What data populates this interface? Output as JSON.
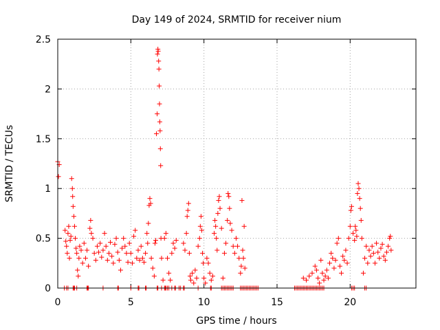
{
  "chart_data": {
    "type": "scatter",
    "title": "Day 149 of 2024, SRMTID for receiver nium",
    "xlabel": "GPS time / hours",
    "ylabel": "SRMTID / TECUs",
    "xlim": [
      0,
      24.5
    ],
    "ylim": [
      0,
      2.5
    ],
    "xticks": [
      0,
      5,
      10,
      15,
      20
    ],
    "xtick_labels": [
      "0",
      "5",
      "10",
      "15",
      "20"
    ],
    "yticks": [
      0,
      0.5,
      1,
      1.5,
      2,
      2.5
    ],
    "ytick_labels": [
      "0",
      "0.5",
      "1",
      "1.5",
      "2",
      "2.5"
    ],
    "grid": true,
    "marker": "+",
    "color": "#ff0000",
    "series": [
      {
        "name": "SRMTID",
        "points": [
          [
            0.0,
            1.27
          ],
          [
            0.05,
            1.12
          ],
          [
            0.1,
            1.24
          ],
          [
            0.5,
            0.58
          ],
          [
            0.55,
            0.47
          ],
          [
            0.6,
            0.42
          ],
          [
            0.65,
            0.35
          ],
          [
            0.7,
            0.55
          ],
          [
            0.75,
            0.62
          ],
          [
            0.8,
            0.3
          ],
          [
            0.85,
            0.48
          ],
          [
            0.9,
            0.52
          ],
          [
            0.95,
            1.1
          ],
          [
            1.0,
            1.0
          ],
          [
            1.02,
            0.92
          ],
          [
            1.05,
            0.82
          ],
          [
            1.1,
            0.72
          ],
          [
            1.15,
            0.62
          ],
          [
            1.2,
            0.5
          ],
          [
            1.25,
            0.4
          ],
          [
            1.3,
            0.35
          ],
          [
            1.35,
            0.18
          ],
          [
            1.4,
            0.12
          ],
          [
            1.45,
            0.3
          ],
          [
            1.5,
            0.42
          ],
          [
            1.6,
            0.38
          ],
          [
            1.7,
            0.25
          ],
          [
            1.8,
            0.45
          ],
          [
            1.9,
            0.3
          ],
          [
            2.0,
            0.38
          ],
          [
            2.1,
            0.22
          ],
          [
            2.2,
            0.6
          ],
          [
            2.25,
            0.68
          ],
          [
            2.3,
            0.55
          ],
          [
            2.4,
            0.5
          ],
          [
            2.5,
            0.35
          ],
          [
            2.6,
            0.28
          ],
          [
            2.7,
            0.42
          ],
          [
            2.8,
            0.36
          ],
          [
            2.9,
            0.45
          ],
          [
            3.0,
            0.31
          ],
          [
            3.1,
            0.38
          ],
          [
            3.2,
            0.55
          ],
          [
            3.3,
            0.42
          ],
          [
            3.4,
            0.28
          ],
          [
            3.5,
            0.35
          ],
          [
            3.6,
            0.46
          ],
          [
            3.7,
            0.32
          ],
          [
            3.8,
            0.25
          ],
          [
            3.9,
            0.44
          ],
          [
            4.0,
            0.5
          ],
          [
            4.1,
            0.36
          ],
          [
            4.2,
            0.28
          ],
          [
            4.3,
            0.18
          ],
          [
            4.4,
            0.4
          ],
          [
            4.5,
            0.5
          ],
          [
            4.6,
            0.42
          ],
          [
            4.7,
            0.35
          ],
          [
            4.8,
            0.26
          ],
          [
            4.9,
            0.45
          ],
          [
            5.0,
            0.35
          ],
          [
            5.1,
            0.25
          ],
          [
            5.2,
            0.52
          ],
          [
            5.3,
            0.58
          ],
          [
            5.4,
            0.3
          ],
          [
            5.5,
            0.38
          ],
          [
            5.6,
            0.28
          ],
          [
            5.7,
            0.42
          ],
          [
            5.8,
            0.3
          ],
          [
            5.9,
            0.26
          ],
          [
            6.0,
            0.35
          ],
          [
            6.1,
            0.55
          ],
          [
            6.15,
            0.45
          ],
          [
            6.2,
            0.65
          ],
          [
            6.25,
            0.83
          ],
          [
            6.3,
            0.9
          ],
          [
            6.35,
            0.85
          ],
          [
            6.4,
            0.3
          ],
          [
            6.5,
            0.2
          ],
          [
            6.6,
            0.12
          ],
          [
            6.65,
            0.45
          ],
          [
            6.7,
            0.48
          ],
          [
            6.75,
            1.55
          ],
          [
            6.8,
            1.75
          ],
          [
            6.82,
            2.35
          ],
          [
            6.85,
            2.4
          ],
          [
            6.87,
            2.38
          ],
          [
            6.9,
            2.28
          ],
          [
            6.92,
            2.2
          ],
          [
            6.94,
            2.03
          ],
          [
            6.96,
            1.85
          ],
          [
            6.98,
            1.67
          ],
          [
            7.0,
            1.58
          ],
          [
            7.02,
            1.4
          ],
          [
            7.04,
            1.23
          ],
          [
            7.06,
            0.5
          ],
          [
            7.1,
            0.3
          ],
          [
            7.2,
            0.08
          ],
          [
            7.3,
            0.5
          ],
          [
            7.4,
            0.55
          ],
          [
            7.5,
            0.3
          ],
          [
            7.6,
            0.15
          ],
          [
            7.7,
            0.08
          ],
          [
            7.8,
            0.35
          ],
          [
            7.9,
            0.45
          ],
          [
            8.0,
            0.4
          ],
          [
            8.1,
            0.48
          ],
          [
            8.6,
            0.45
          ],
          [
            8.7,
            0.38
          ],
          [
            8.8,
            0.55
          ],
          [
            8.85,
            0.72
          ],
          [
            8.9,
            0.78
          ],
          [
            8.95,
            0.85
          ],
          [
            9.0,
            0.35
          ],
          [
            9.05,
            0.12
          ],
          [
            9.1,
            0.08
          ],
          [
            9.2,
            0.15
          ],
          [
            9.3,
            0.05
          ],
          [
            9.4,
            0.18
          ],
          [
            9.5,
            0.1
          ],
          [
            9.6,
            0.42
          ],
          [
            9.7,
            0.5
          ],
          [
            9.75,
            0.62
          ],
          [
            9.8,
            0.72
          ],
          [
            9.85,
            0.58
          ],
          [
            9.9,
            0.35
          ],
          [
            9.95,
            0.25
          ],
          [
            10.0,
            0.1
          ],
          [
            10.1,
            0.05
          ],
          [
            10.2,
            0.3
          ],
          [
            10.3,
            0.25
          ],
          [
            10.4,
            0.15
          ],
          [
            10.5,
            0.08
          ],
          [
            10.6,
            0.12
          ],
          [
            10.7,
            0.55
          ],
          [
            10.75,
            0.68
          ],
          [
            10.8,
            0.62
          ],
          [
            10.85,
            0.5
          ],
          [
            10.9,
            0.38
          ],
          [
            10.95,
            0.75
          ],
          [
            11.0,
            0.88
          ],
          [
            11.05,
            0.92
          ],
          [
            11.1,
            0.8
          ],
          [
            11.2,
            0.6
          ],
          [
            11.3,
            0.1
          ],
          [
            11.4,
            0.35
          ],
          [
            11.5,
            0.45
          ],
          [
            11.6,
            0.68
          ],
          [
            11.65,
            0.95
          ],
          [
            11.7,
            0.92
          ],
          [
            11.75,
            0.8
          ],
          [
            11.8,
            0.65
          ],
          [
            11.9,
            0.58
          ],
          [
            12.0,
            0.42
          ],
          [
            12.1,
            0.35
          ],
          [
            12.2,
            0.5
          ],
          [
            12.3,
            0.42
          ],
          [
            12.4,
            0.3
          ],
          [
            12.5,
            0.15
          ],
          [
            12.55,
            0.22
          ],
          [
            12.6,
            0.88
          ],
          [
            12.65,
            0.38
          ],
          [
            12.7,
            0.3
          ],
          [
            12.75,
            0.62
          ],
          [
            12.8,
            0.2
          ],
          [
            16.8,
            0.1
          ],
          [
            17.0,
            0.08
          ],
          [
            17.2,
            0.12
          ],
          [
            17.4,
            0.15
          ],
          [
            17.6,
            0.22
          ],
          [
            17.7,
            0.18
          ],
          [
            17.8,
            0.1
          ],
          [
            17.9,
            0.05
          ],
          [
            18.0,
            0.28
          ],
          [
            18.1,
            0.15
          ],
          [
            18.2,
            0.08
          ],
          [
            18.3,
            0.12
          ],
          [
            18.4,
            0.18
          ],
          [
            18.5,
            0.1
          ],
          [
            18.6,
            0.25
          ],
          [
            18.7,
            0.35
          ],
          [
            18.8,
            0.3
          ],
          [
            18.9,
            0.2
          ],
          [
            19.0,
            0.28
          ],
          [
            19.1,
            0.45
          ],
          [
            19.2,
            0.5
          ],
          [
            19.3,
            0.22
          ],
          [
            19.4,
            0.15
          ],
          [
            19.5,
            0.32
          ],
          [
            19.6,
            0.28
          ],
          [
            19.7,
            0.38
          ],
          [
            19.8,
            0.25
          ],
          [
            19.9,
            0.5
          ],
          [
            20.0,
            0.62
          ],
          [
            20.05,
            0.78
          ],
          [
            20.1,
            0.82
          ],
          [
            20.2,
            0.55
          ],
          [
            20.3,
            0.48
          ],
          [
            20.35,
            0.62
          ],
          [
            20.4,
            0.58
          ],
          [
            20.45,
            0.52
          ],
          [
            20.5,
            0.95
          ],
          [
            20.55,
            1.05
          ],
          [
            20.6,
            1.0
          ],
          [
            20.65,
            0.9
          ],
          [
            20.7,
            0.8
          ],
          [
            20.75,
            0.68
          ],
          [
            20.8,
            0.5
          ],
          [
            20.9,
            0.15
          ],
          [
            21.0,
            0.3
          ],
          [
            21.1,
            0.42
          ],
          [
            21.2,
            0.25
          ],
          [
            21.3,
            0.38
          ],
          [
            21.4,
            0.32
          ],
          [
            21.5,
            0.42
          ],
          [
            21.6,
            0.35
          ],
          [
            21.7,
            0.25
          ],
          [
            21.8,
            0.45
          ],
          [
            21.9,
            0.36
          ],
          [
            22.0,
            0.3
          ],
          [
            22.1,
            0.4
          ],
          [
            22.2,
            0.44
          ],
          [
            22.3,
            0.32
          ],
          [
            22.4,
            0.28
          ],
          [
            22.5,
            0.36
          ],
          [
            22.6,
            0.42
          ],
          [
            22.7,
            0.5
          ],
          [
            22.75,
            0.52
          ],
          [
            22.8,
            0.38
          ]
        ],
        "zero_points": [
          0.45,
          0.6,
          0.7,
          1.05,
          1.1,
          1.15,
          1.3,
          2.0,
          2.05,
          2.1,
          3.1,
          4.1,
          4.15,
          5.0,
          5.5,
          5.55,
          6.0,
          6.05,
          6.8,
          6.85,
          7.1,
          7.3,
          7.35,
          7.4,
          7.5,
          7.6,
          7.8,
          8.0,
          8.05,
          8.3,
          8.4,
          8.6,
          8.65,
          9.6,
          10.45,
          10.5,
          11.2,
          11.3,
          11.4,
          11.5,
          11.6,
          11.7,
          11.8,
          11.9,
          12.0,
          12.5,
          12.6,
          12.7,
          12.8,
          12.9,
          13.0,
          13.1,
          13.2,
          13.3,
          13.4,
          13.5,
          13.6,
          13.7,
          16.2,
          16.3,
          16.4,
          16.5,
          16.6,
          16.7,
          16.8,
          16.9,
          17.0,
          17.1,
          17.2,
          17.3,
          17.4,
          17.5,
          17.6,
          17.7,
          17.8,
          17.9,
          18.0,
          18.1,
          18.2,
          20.1,
          20.2,
          20.3,
          21.0,
          21.1
        ]
      }
    ]
  }
}
